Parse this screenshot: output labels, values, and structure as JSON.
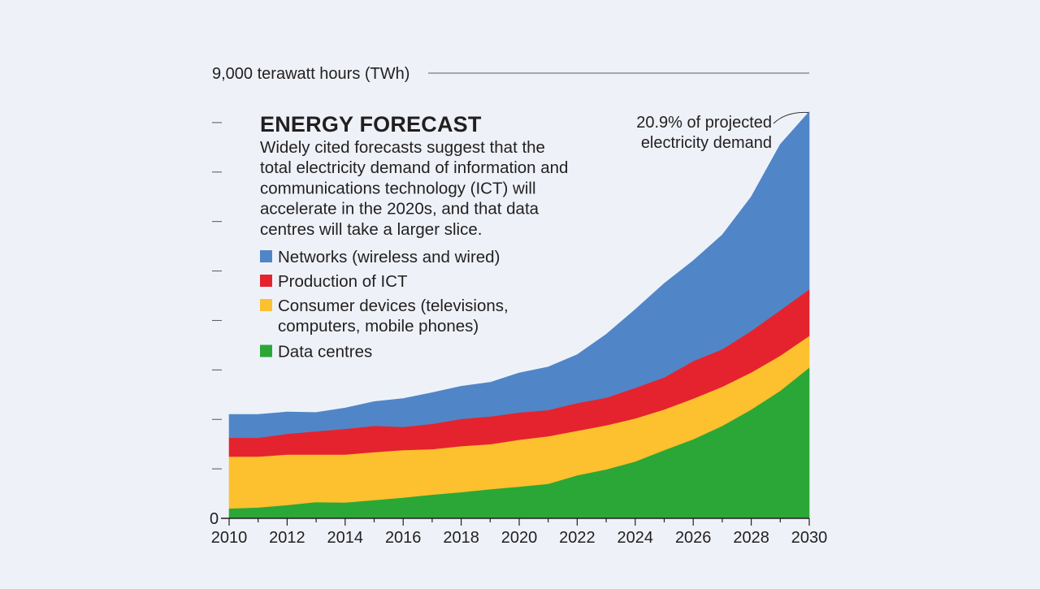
{
  "chart_data": {
    "type": "area",
    "title": "ENERGY FORECAST",
    "subtitle_lines": [
      "Widely cited forecasts suggest that the",
      "total electricity demand of information and",
      "communications technology (ICT) will",
      "accelerate in the 2020s, and that data",
      "centres will take a larger slice."
    ],
    "ylabel": "9,000 terawatt hours (TWh)",
    "y_zero_label": "0",
    "ylim": [
      0,
      9000
    ],
    "y_ticks": [
      0,
      1000,
      2000,
      3000,
      4000,
      5000,
      6000,
      7000,
      8000
    ],
    "xlim": [
      2010,
      2030
    ],
    "x_tick_labels": [
      "2010",
      "2012",
      "2014",
      "2016",
      "2018",
      "2020",
      "2022",
      "2024",
      "2026",
      "2028",
      "2030"
    ],
    "x": [
      2010,
      2011,
      2012,
      2013,
      2014,
      2015,
      2016,
      2017,
      2018,
      2019,
      2020,
      2021,
      2022,
      2023,
      2024,
      2025,
      2026,
      2027,
      2028,
      2029,
      2030
    ],
    "stacked": true,
    "series": [
      {
        "name": "Data centres",
        "color": "#2ba737",
        "values": [
          200,
          220,
          270,
          330,
          320,
          370,
          420,
          480,
          530,
          590,
          640,
          700,
          870,
          990,
          1150,
          1380,
          1600,
          1870,
          2200,
          2580,
          3050
        ]
      },
      {
        "name": "Consumer devices (televisions, computers, mobile phones)",
        "color": "#fdc02f",
        "values": [
          1050,
          1030,
          1020,
          960,
          970,
          970,
          960,
          920,
          930,
          910,
          950,
          960,
          900,
          890,
          870,
          820,
          820,
          790,
          750,
          710,
          640
        ]
      },
      {
        "name": "Production of ICT",
        "color": "#e5232e",
        "values": [
          380,
          380,
          420,
          470,
          520,
          530,
          470,
          510,
          550,
          560,
          550,
          530,
          560,
          560,
          620,
          650,
          760,
          760,
          840,
          920,
          940
        ]
      },
      {
        "name": "Networks (wireless and wired)",
        "color": "#5086c7",
        "values": [
          470,
          470,
          440,
          380,
          420,
          490,
          570,
          630,
          660,
          690,
          800,
          870,
          980,
          1280,
          1580,
          1900,
          2030,
          2310,
          2710,
          3350,
          3590
        ]
      }
    ],
    "legend": [
      {
        "label_lines": [
          "Networks (wireless and wired)"
        ],
        "color": "#5086c7"
      },
      {
        "label_lines": [
          "Production of ICT"
        ],
        "color": "#e5232e"
      },
      {
        "label_lines": [
          "Consumer devices (televisions,",
          "computers, mobile phones)"
        ],
        "color": "#fdc02f"
      },
      {
        "label_lines": [
          "Data centres"
        ],
        "color": "#2ba737"
      }
    ],
    "legend_placement": "upper-left",
    "annotation": {
      "text_lines": [
        "20.9% of projected",
        "electricity demand"
      ],
      "x": 2030
    },
    "grid": false
  }
}
